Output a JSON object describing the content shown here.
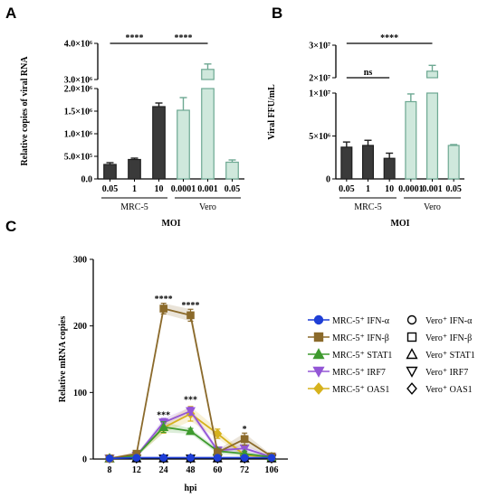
{
  "figure": {
    "panels": {
      "a": "A",
      "b": "B",
      "c": "C"
    }
  },
  "chart_data": [
    {
      "panel": "A",
      "type": "bar",
      "ylabel": "Relative copies of viral RNA",
      "xlabel": "MOI",
      "broken_axis": true,
      "ylim_lower": [
        0,
        2000000
      ],
      "ylim_upper": [
        3000000,
        4000000
      ],
      "yticks_lower": [
        "0.0",
        "5.0×10⁵",
        "1.0×10⁶",
        "1.5×10⁶",
        "2.0×10⁶"
      ],
      "yticks_upper": [
        "3.0×10⁶",
        "4.0×10⁶"
      ],
      "categories": [
        "0.05",
        "1",
        "10",
        "0.0001",
        "0.001",
        "0.05"
      ],
      "groups": [
        {
          "label": "MRC-5",
          "indices": [
            0,
            1,
            2
          ]
        },
        {
          "label": "Vero",
          "indices": [
            3,
            4,
            5
          ]
        }
      ],
      "values": [
        320000,
        430000,
        1600000,
        1520000,
        3280000,
        370000
      ],
      "errors": [
        40000,
        30000,
        80000,
        280000,
        150000,
        50000
      ],
      "colors": [
        "#3a3a3a",
        "#3a3a3a",
        "#3a3a3a",
        "#cfe8dc",
        "#cfe8dc",
        "#cfe8dc"
      ],
      "annotations": [
        {
          "text": "****",
          "from": 0,
          "to": 2
        },
        {
          "text": "****",
          "from": 2,
          "to": 4
        }
      ]
    },
    {
      "panel": "B",
      "type": "bar",
      "ylabel": "Viral FFU/mL",
      "xlabel": "MOI",
      "broken_axis": true,
      "ylim_lower": [
        0,
        10000000
      ],
      "ylim_upper": [
        20000000,
        30000000
      ],
      "yticks_lower": [
        "0",
        "5×10⁶",
        "1×10⁷"
      ],
      "yticks_upper": [
        "2×10⁷",
        "3×10⁷"
      ],
      "categories": [
        "0.05",
        "1",
        "10",
        "0.0001",
        "0.001",
        "0.05"
      ],
      "groups": [
        {
          "label": "MRC-5",
          "indices": [
            0,
            1,
            2
          ]
        },
        {
          "label": "Vero",
          "indices": [
            3,
            4,
            5
          ]
        }
      ],
      "values": [
        3700000,
        3900000,
        2400000,
        9000000,
        22000000,
        3900000
      ],
      "errors": [
        600000,
        600000,
        600000,
        900000,
        1800000,
        100000
      ],
      "colors": [
        "#3a3a3a",
        "#3a3a3a",
        "#3a3a3a",
        "#cfe8dc",
        "#cfe8dc",
        "#cfe8dc"
      ],
      "annotations": [
        {
          "text": "ns",
          "from": 0,
          "to": 2
        },
        {
          "text": "****",
          "from": 0,
          "to": 4
        }
      ]
    },
    {
      "panel": "C",
      "type": "line",
      "xlabel": "hpi",
      "ylabel": "Relative mRNA copies",
      "x": [
        "8",
        "12",
        "24",
        "48",
        "60",
        "72",
        "106"
      ],
      "ylim": [
        0,
        300
      ],
      "yticks": [
        0,
        100,
        200,
        300
      ],
      "series": [
        {
          "name": "MRC-5⁺ IFN-α",
          "values": [
            1,
            2,
            2,
            2,
            2,
            2,
            2
          ],
          "errors": [
            0,
            0,
            0,
            0,
            0,
            0,
            0
          ],
          "color": "#1f3fd6",
          "marker": "circle",
          "filled": true
        },
        {
          "name": "MRC-5⁺ IFN-β",
          "values": [
            1,
            8,
            226,
            216,
            10,
            30,
            4
          ],
          "errors": [
            1,
            3,
            8,
            9,
            4,
            9,
            2
          ],
          "color": "#8b6a2b",
          "marker": "square",
          "filled": true
        },
        {
          "name": "MRC-5⁺ STAT1",
          "values": [
            1,
            5,
            48,
            42,
            12,
            8,
            3
          ],
          "errors": [
            1,
            2,
            8,
            4,
            4,
            4,
            1
          ],
          "color": "#3e9a2e",
          "marker": "triangle",
          "filled": true
        },
        {
          "name": "MRC-5⁺ IRF7",
          "values": [
            1,
            5,
            55,
            72,
            13,
            16,
            3
          ],
          "errors": [
            1,
            2,
            6,
            6,
            4,
            5,
            1
          ],
          "color": "#9356d6",
          "marker": "triangle-down",
          "filled": true
        },
        {
          "name": "MRC-5⁺ OAS1",
          "values": [
            1,
            6,
            47,
            68,
            38,
            6,
            3
          ],
          "errors": [
            1,
            2,
            8,
            11,
            7,
            3,
            1
          ],
          "color": "#d6b21d",
          "marker": "diamond",
          "filled": true
        },
        {
          "name": "Vero⁺ IFN-α",
          "values": [
            1,
            1,
            1,
            1,
            1,
            1,
            1
          ],
          "errors": [
            0,
            0,
            0,
            0,
            0,
            0,
            0
          ],
          "color": "#000000",
          "marker": "circle",
          "filled": false
        },
        {
          "name": "Vero⁺ IFN-β",
          "values": [
            1,
            1,
            1,
            1,
            1,
            1,
            1
          ],
          "errors": [
            0,
            0,
            0,
            0,
            0,
            0,
            0
          ],
          "color": "#000000",
          "marker": "square",
          "filled": false
        },
        {
          "name": "Vero⁺ STAT1",
          "values": [
            1,
            1,
            1,
            1,
            1,
            1,
            1
          ],
          "errors": [
            0,
            0,
            0,
            0,
            0,
            0,
            0
          ],
          "color": "#000000",
          "marker": "triangle",
          "filled": false
        },
        {
          "name": "Vero⁺ IRF7",
          "values": [
            1,
            1,
            1,
            1,
            1,
            1,
            1
          ],
          "errors": [
            0,
            0,
            0,
            0,
            0,
            0,
            0
          ],
          "color": "#000000",
          "marker": "triangle-down",
          "filled": false
        },
        {
          "name": "Vero⁺ OAS1",
          "values": [
            1,
            1,
            1,
            1,
            1,
            1,
            1
          ],
          "errors": [
            0,
            0,
            0,
            0,
            0,
            0,
            0
          ],
          "color": "#000000",
          "marker": "diamond",
          "filled": false
        }
      ],
      "annotations": [
        {
          "x": "24",
          "text": "****",
          "y": 236
        },
        {
          "x": "48",
          "text": "****",
          "y": 227
        },
        {
          "x": "24",
          "text": "***",
          "y": 62
        },
        {
          "x": "48",
          "text": "***",
          "y": 85
        },
        {
          "x": "72",
          "text": "*",
          "y": 41
        }
      ],
      "legend": "right"
    }
  ]
}
